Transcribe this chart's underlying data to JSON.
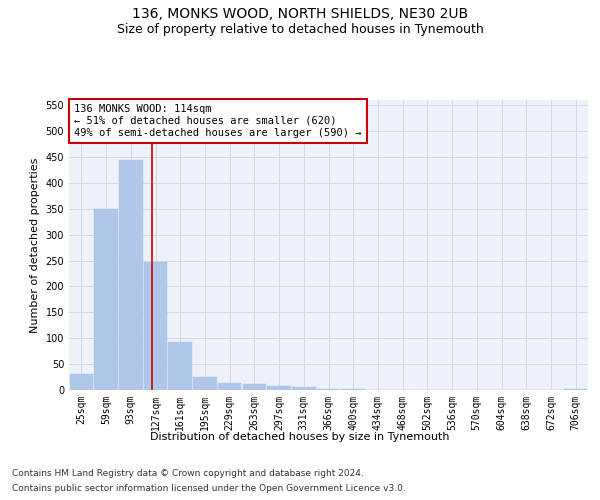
{
  "title_line1": "136, MONKS WOOD, NORTH SHIELDS, NE30 2UB",
  "title_line2": "Size of property relative to detached houses in Tynemouth",
  "xlabel": "Distribution of detached houses by size in Tynemouth",
  "ylabel": "Number of detached properties",
  "bin_labels": [
    "25sqm",
    "59sqm",
    "93sqm",
    "127sqm",
    "161sqm",
    "195sqm",
    "229sqm",
    "263sqm",
    "297sqm",
    "331sqm",
    "366sqm",
    "400sqm",
    "434sqm",
    "468sqm",
    "502sqm",
    "536sqm",
    "570sqm",
    "604sqm",
    "638sqm",
    "672sqm",
    "706sqm"
  ],
  "bar_values": [
    30,
    350,
    445,
    248,
    93,
    25,
    13,
    11,
    8,
    5,
    2,
    1,
    0,
    0,
    0,
    0,
    0,
    0,
    0,
    0,
    1
  ],
  "bar_color": "#aec6e8",
  "bar_edgecolor": "#aec6e8",
  "vline_x": 2.85,
  "vline_color": "#cc0000",
  "annotation_text": "136 MONKS WOOD: 114sqm\n← 51% of detached houses are smaller (620)\n49% of semi-detached houses are larger (590) →",
  "annotation_box_edgecolor": "#cc0000",
  "annotation_box_facecolor": "#ffffff",
  "ylim": [
    0,
    560
  ],
  "yticks": [
    0,
    50,
    100,
    150,
    200,
    250,
    300,
    350,
    400,
    450,
    500,
    550
  ],
  "grid_color": "#d0d8e8",
  "background_color": "#eef2f8",
  "footer_line1": "Contains HM Land Registry data © Crown copyright and database right 2024.",
  "footer_line2": "Contains public sector information licensed under the Open Government Licence v3.0.",
  "title_fontsize": 10,
  "subtitle_fontsize": 9,
  "axis_label_fontsize": 8,
  "tick_fontsize": 7,
  "annotation_fontsize": 7.5,
  "footer_fontsize": 6.5
}
